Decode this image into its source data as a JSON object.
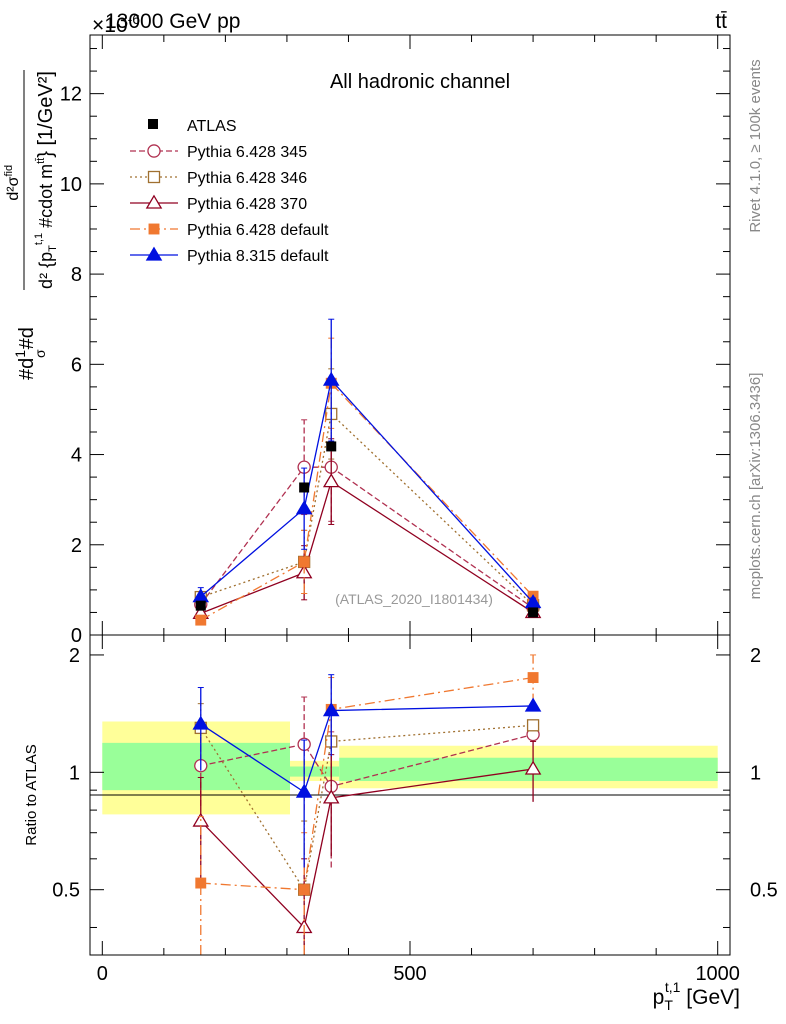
{
  "header": {
    "energy_label": "13000 GeV pp",
    "exponent_label": "×10",
    "exponent_power": "-6",
    "process_label": "tt̄"
  },
  "side_labels": {
    "rivet": "Rivet 4.1.0, ≥ 100k events",
    "mcplots": "mcplots.cern.ch [arXiv:1306.3436]"
  },
  "chart_data": [
    {
      "type": "line",
      "title": "All hadronic channel",
      "watermark": "(ATLAS_2020_I1801434)",
      "xlabel": "p_T^{t,1} [GeV]",
      "ylabel": "#d#frac{1}{σ}#d#frac{d^{2}σ^{fid}}{d^{2} {p_T^{t,1} #cdot m^{tt̄}}} [1/GeV²]",
      "xlim": [
        -20,
        1020
      ],
      "ylim": [
        0,
        13.3
      ],
      "yticks": [
        0,
        2,
        4,
        6,
        8,
        10,
        12
      ],
      "xticks": [
        0,
        500,
        1000
      ],
      "legend_position": "top-left",
      "reference": {
        "name": "ATLAS",
        "x": [
          160,
          328,
          372,
          700
        ],
        "y": [
          0.65,
          3.27,
          4.18,
          0.5
        ],
        "yerr": [
          0.05,
          0.08,
          0.1,
          0.03
        ]
      },
      "series": [
        {
          "name": "Pythia 6.428 345",
          "color": "#b03050",
          "dash": "6,3",
          "marker": "circle-open",
          "x": [
            160,
            328,
            372,
            700
          ],
          "y": [
            0.68,
            3.72,
            3.72,
            0.6
          ],
          "yerr": [
            0.15,
            1.05,
            1.2,
            0.08
          ]
        },
        {
          "name": "Pythia 6.428 346",
          "color": "#a07030",
          "dash": "2,3",
          "marker": "square-open",
          "x": [
            160,
            328,
            372,
            700
          ],
          "y": [
            0.84,
            1.62,
            4.9,
            0.66
          ],
          "yerr": [
            0.12,
            0.7,
            1.0,
            0.08
          ]
        },
        {
          "name": "Pythia 6.428 370",
          "color": "#900020",
          "dash": "",
          "marker": "triangle-open",
          "x": [
            160,
            328,
            372,
            700
          ],
          "y": [
            0.48,
            1.38,
            3.4,
            0.5
          ],
          "yerr": [
            0.15,
            0.6,
            0.95,
            0.08
          ]
        },
        {
          "name": "Pythia 6.428 default",
          "color": "#f07830",
          "dash": "10,4,2,4",
          "marker": "square-filled",
          "x": [
            160,
            328,
            372,
            700
          ],
          "y": [
            0.33,
            1.62,
            5.58,
            0.86
          ],
          "yerr": [
            0.1,
            0.7,
            1.0,
            0.1
          ]
        },
        {
          "name": "Pythia 8.315 default",
          "color": "#0010e0",
          "dash": "",
          "marker": "triangle-filled",
          "x": [
            160,
            328,
            372,
            700
          ],
          "y": [
            0.85,
            2.8,
            5.65,
            0.72
          ],
          "yerr": [
            0.2,
            0.9,
            1.35,
            0.1
          ]
        }
      ]
    },
    {
      "type": "line",
      "title": "",
      "ylabel": "Ratio to ATLAS",
      "xlabel": "p_T^{t,1} [GeV]",
      "xlim": [
        -20,
        1020
      ],
      "ylim": [
        0.34,
        2.25
      ],
      "yticks": [
        0.5,
        1,
        2
      ],
      "ytick_labels": [
        "0.5",
        "1",
        "2"
      ],
      "xticks": [
        0,
        500,
        1000
      ],
      "xtick_labels": [
        "0",
        "500",
        "1000"
      ],
      "bands": [
        {
          "x": [
            0,
            305
          ],
          "yellow": [
            0.78,
            1.35
          ],
          "green": [
            0.9,
            1.19
          ]
        },
        {
          "x": [
            305,
            385
          ],
          "yellow": [
            0.95,
            1.07
          ],
          "green": [
            0.975,
            1.035
          ]
        },
        {
          "x": [
            385,
            1000
          ],
          "yellow": [
            0.91,
            1.17
          ],
          "green": [
            0.95,
            1.09
          ]
        }
      ],
      "series": [
        {
          "name": "Pythia 6.428 345",
          "x": [
            160,
            328,
            372,
            700
          ],
          "y": [
            1.04,
            1.18,
            0.92,
            1.25
          ],
          "yerr": [
            0.22,
            0.38,
            0.35,
            0.0
          ]
        },
        {
          "name": "Pythia 6.428 346",
          "x": [
            160,
            328,
            372,
            700
          ],
          "y": [
            1.3,
            0.5,
            1.2,
            1.32
          ],
          "yerr": [
            0.2,
            0.25,
            0.28,
            0.0
          ]
        },
        {
          "name": "Pythia 6.428 370",
          "x": [
            160,
            328,
            372,
            700
          ],
          "y": [
            0.75,
            0.4,
            0.86,
            1.02
          ],
          "yerr": [
            0.22,
            0.2,
            0.25,
            0.18
          ]
        },
        {
          "name": "Pythia 6.428 default",
          "x": [
            160,
            328,
            372,
            700
          ],
          "y": [
            0.52,
            0.5,
            1.45,
            1.75
          ],
          "yerr": [
            0.25,
            0.2,
            0.3,
            0.25
          ]
        },
        {
          "name": "Pythia 8.315 default",
          "x": [
            160,
            328,
            372,
            700
          ],
          "y": [
            1.33,
            0.89,
            1.44,
            1.48
          ],
          "yerr": [
            0.32,
            0.32,
            0.34,
            0.0
          ]
        }
      ]
    }
  ]
}
